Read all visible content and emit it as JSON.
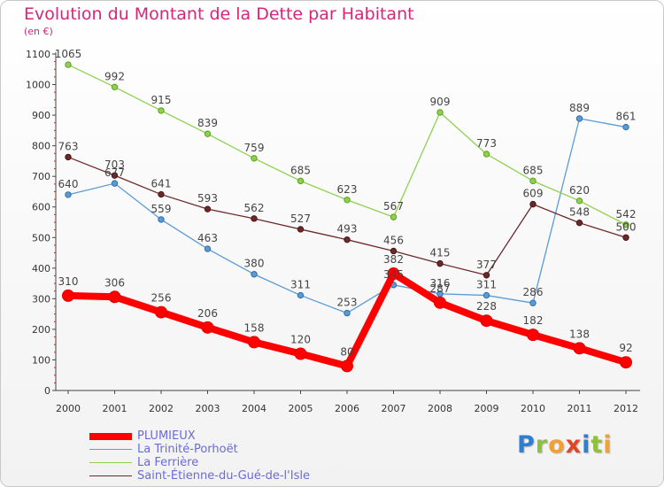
{
  "title": "Evolution du Montant de la Dette par Habitant",
  "subtitle": "(en €)",
  "logo": {
    "text": "Proxiti",
    "letters": [
      {
        "ch": "P",
        "color": "#2f7fd0"
      },
      {
        "ch": "r",
        "color": "#8fc03a"
      },
      {
        "ch": "o",
        "color": "#f2a12a"
      },
      {
        "ch": "x",
        "color": "#e0452a"
      },
      {
        "ch": "i",
        "color": "#2f7fd0"
      },
      {
        "ch": "t",
        "color": "#8fc03a"
      },
      {
        "ch": "i",
        "color": "#f2a12a"
      }
    ]
  },
  "chart_data": {
    "type": "line",
    "x": [
      "2000",
      "2001",
      "2002",
      "2003",
      "2004",
      "2005",
      "2006",
      "2007",
      "2008",
      "2009",
      "2010",
      "2011",
      "2012"
    ],
    "ylim": [
      0,
      1100
    ],
    "yticks": [
      0,
      100,
      200,
      300,
      400,
      500,
      600,
      700,
      800,
      900,
      1000,
      1100
    ],
    "grid": false,
    "legend_position": "bottom-left",
    "series": [
      {
        "name": "PLUMIEUX",
        "color": "#ff0000",
        "values": [
          310,
          306,
          256,
          206,
          158,
          120,
          80,
          382,
          287,
          228,
          182,
          138,
          92
        ],
        "labels": [
          "310",
          "306",
          "256",
          "206",
          "158",
          "120",
          "80",
          "382",
          "287",
          "228",
          "182",
          "138",
          "92"
        ]
      },
      {
        "name": "La Trinité-Porhoët",
        "color": "#5b9bd5",
        "values": [
          640,
          677,
          559,
          463,
          380,
          311,
          253,
          345,
          316,
          311,
          286,
          889,
          861
        ],
        "labels": [
          "640",
          "677",
          "559",
          "463",
          "380",
          "311",
          "253",
          "345",
          "316",
          "311",
          "286",
          "889",
          "861"
        ]
      },
      {
        "name": "La Ferrière",
        "color": "#8fd14f",
        "values": [
          1065,
          992,
          915,
          839,
          759,
          685,
          623,
          567,
          909,
          773,
          685,
          620,
          542
        ],
        "labels": [
          "1065",
          "992",
          "915",
          "839",
          "759",
          "685",
          "623",
          "567",
          "909",
          "773",
          "685",
          "620",
          "542"
        ]
      },
      {
        "name": "Saint-Étienne-du-Gué-de-l'Isle",
        "color": "#6b2a2a",
        "values": [
          763,
          703,
          641,
          593,
          562,
          527,
          493,
          456,
          415,
          377,
          609,
          548,
          500
        ],
        "labels": [
          "763",
          "703",
          "641",
          "593",
          "562",
          "527",
          "493",
          "456",
          "415",
          "377",
          "609",
          "548",
          "500"
        ]
      }
    ]
  }
}
